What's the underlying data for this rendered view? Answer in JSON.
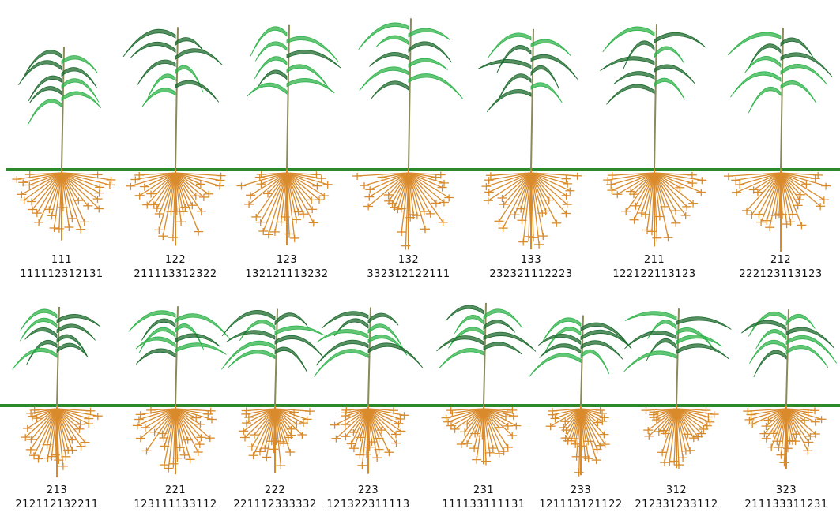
{
  "rows": [
    {
      "plants": [
        {
          "label": "111",
          "code": "111112312131"
        },
        {
          "label": "122",
          "code": "211113312322"
        },
        {
          "label": "123",
          "code": "132121113232"
        },
        {
          "label": "132",
          "code": "332312122111"
        },
        {
          "label": "133",
          "code": "232321112223"
        },
        {
          "label": "211",
          "code": "122122113123"
        },
        {
          "label": "212",
          "code": "222123113123"
        }
      ]
    },
    {
      "plants": [
        {
          "label": "213",
          "code": "212112132211"
        },
        {
          "label": "221",
          "code": "123111133112"
        },
        {
          "label": "222",
          "code": "221112333332"
        },
        {
          "label": "223",
          "code": "121322311113"
        },
        {
          "label": "231",
          "code": "111133111131"
        },
        {
          "label": "233",
          "code": "121113121122"
        },
        {
          "label": "312",
          "code": "212331233112"
        },
        {
          "label": "323",
          "code": "211133311231"
        }
      ]
    }
  ]
}
